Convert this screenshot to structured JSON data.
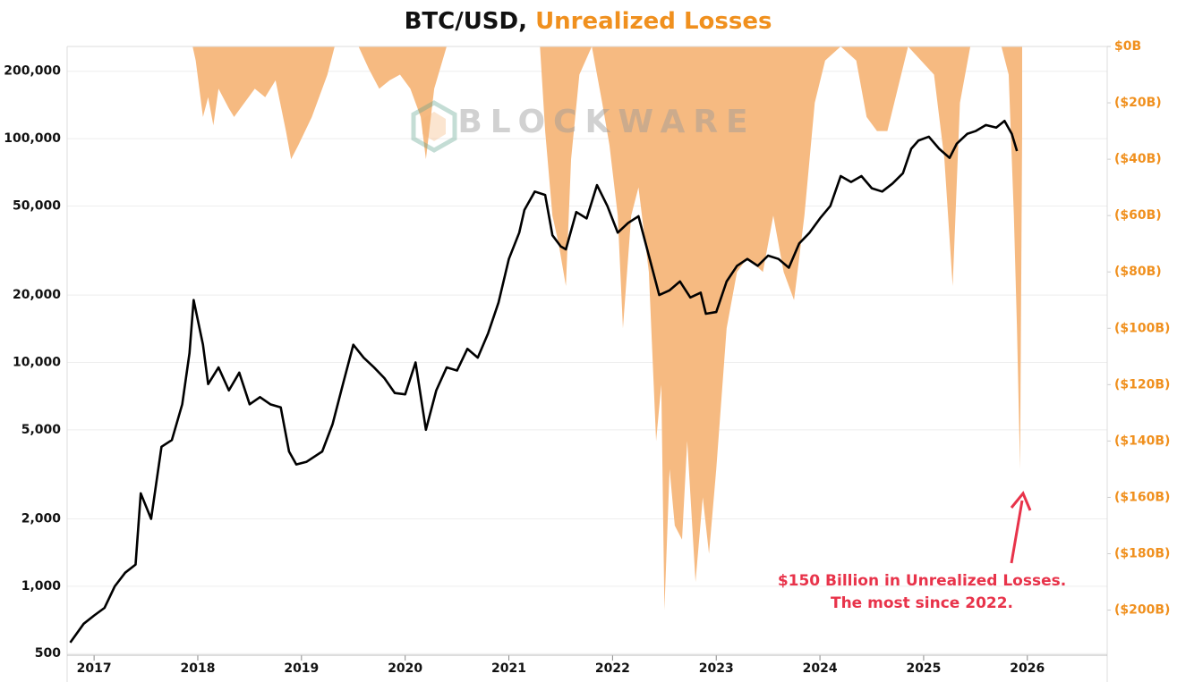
{
  "chart_data": {
    "type": "line-area",
    "title_parts": [
      "BTC/USD,",
      "Unrealized Losses"
    ],
    "title_colors": [
      "#111111",
      "#f0901e"
    ],
    "watermark": "BLOCKWARE",
    "annotation": [
      "$150 Billion in Unrealized Losses.",
      "The most since 2022."
    ],
    "annotation_color": "#e8334a",
    "xlim": [
      2016.74,
      2026.77
    ],
    "xticks": [
      2017,
      2018,
      2019,
      2020,
      2021,
      2022,
      2023,
      2024,
      2025,
      2026
    ],
    "ylim": [
      492,
      258000
    ],
    "log_y": true,
    "yticks": [
      500,
      {
        "value": 1000,
        "label": "1,000"
      },
      {
        "value": 2000,
        "label": "2,000"
      },
      {
        "value": 5000,
        "label": "5,000"
      },
      {
        "value": 10000,
        "label": "10,000"
      },
      {
        "value": 20000,
        "label": "20,000"
      },
      {
        "value": 50000,
        "label": "50,000"
      },
      {
        "value": 100000,
        "label": "100,000"
      },
      {
        "value": 200000,
        "label": "200,000"
      }
    ],
    "y2lim": [
      -216,
      0
    ],
    "y2ticks": [
      {
        "value": 0,
        "label": "$0B"
      },
      {
        "value": -20,
        "label": "($20B)"
      },
      {
        "value": -40,
        "label": "($40B)"
      },
      {
        "value": -60,
        "label": "($60B)"
      },
      {
        "value": -80,
        "label": "($80B)"
      },
      {
        "value": -100,
        "label": "($100B)"
      },
      {
        "value": -120,
        "label": "($120B)"
      },
      {
        "value": -140,
        "label": "($140B)"
      },
      {
        "value": -160,
        "label": "($160B)"
      },
      {
        "value": -180,
        "label": "($180B)"
      },
      {
        "value": -200,
        "label": "($200B)"
      }
    ],
    "grid": true,
    "series": [
      {
        "kind": "area",
        "axis": "y2",
        "color": "#f5b67a",
        "x": [
          2016.74,
          2017.95,
          2017.98,
          2018.05,
          2018.1,
          2018.15,
          2018.2,
          2018.3,
          2018.35,
          2018.45,
          2018.55,
          2018.65,
          2018.75,
          2018.85,
          2018.9,
          2018.97,
          2019.1,
          2019.25,
          2019.32,
          2019.55,
          2019.65,
          2019.75,
          2019.85,
          2019.95,
          2020.05,
          2020.15,
          2020.2,
          2020.28,
          2020.4,
          2021.3,
          2021.35,
          2021.42,
          2021.48,
          2021.55,
          2021.6,
          2021.68,
          2021.8,
          2021.9,
          2021.97,
          2022.05,
          2022.1,
          2022.18,
          2022.25,
          2022.35,
          2022.42,
          2022.47,
          2022.5,
          2022.55,
          2022.6,
          2022.67,
          2022.72,
          2022.8,
          2022.87,
          2022.93,
          2023.0,
          2023.1,
          2023.2,
          2023.3,
          2023.45,
          2023.55,
          2023.65,
          2023.75,
          2023.85,
          2023.95,
          2024.05,
          2024.2,
          2024.35,
          2024.45,
          2024.55,
          2024.65,
          2024.75,
          2024.85,
          2025.1,
          2025.2,
          2025.28,
          2025.35,
          2025.45,
          2025.75,
          2025.82,
          2025.87,
          2025.9,
          2025.93,
          2025.95
        ],
        "values": [
          0,
          0,
          -5,
          -25,
          -18,
          -28,
          -15,
          -22,
          -25,
          -20,
          -15,
          -18,
          -12,
          -30,
          -40,
          -35,
          -25,
          -10,
          0,
          0,
          -8,
          -15,
          -12,
          -10,
          -15,
          -25,
          -40,
          -15,
          0,
          0,
          -30,
          -60,
          -70,
          -85,
          -40,
          -10,
          0,
          -20,
          -35,
          -60,
          -100,
          -60,
          -50,
          -80,
          -140,
          -120,
          -200,
          -150,
          -170,
          -175,
          -140,
          -190,
          -160,
          -180,
          -150,
          -100,
          -80,
          -75,
          -80,
          -60,
          -80,
          -90,
          -60,
          -20,
          -5,
          0,
          -5,
          -25,
          -30,
          -30,
          -15,
          0,
          -10,
          -40,
          -85,
          -20,
          0,
          0,
          -10,
          -60,
          -100,
          -150,
          -30
        ]
      },
      {
        "kind": "line",
        "axis": "y",
        "color": "#000000",
        "x": [
          2016.77,
          2016.9,
          2017.0,
          2017.1,
          2017.2,
          2017.3,
          2017.4,
          2017.45,
          2017.55,
          2017.65,
          2017.75,
          2017.85,
          2017.92,
          2017.96,
          2018.05,
          2018.1,
          2018.2,
          2018.3,
          2018.4,
          2018.5,
          2018.6,
          2018.7,
          2018.8,
          2018.88,
          2018.95,
          2019.05,
          2019.2,
          2019.3,
          2019.4,
          2019.5,
          2019.6,
          2019.7,
          2019.8,
          2019.9,
          2020.0,
          2020.1,
          2020.2,
          2020.3,
          2020.4,
          2020.5,
          2020.6,
          2020.7,
          2020.8,
          2020.9,
          2021.0,
          2021.1,
          2021.15,
          2021.25,
          2021.35,
          2021.42,
          2021.5,
          2021.55,
          2021.65,
          2021.75,
          2021.85,
          2021.95,
          2022.05,
          2022.15,
          2022.25,
          2022.35,
          2022.45,
          2022.55,
          2022.65,
          2022.75,
          2022.85,
          2022.9,
          2023.0,
          2023.1,
          2023.2,
          2023.3,
          2023.4,
          2023.5,
          2023.6,
          2023.7,
          2023.8,
          2023.9,
          2024.0,
          2024.1,
          2024.2,
          2024.3,
          2024.4,
          2024.5,
          2024.6,
          2024.7,
          2024.8,
          2024.88,
          2024.95,
          2025.05,
          2025.15,
          2025.25,
          2025.32,
          2025.42,
          2025.5,
          2025.6,
          2025.7,
          2025.78,
          2025.85,
          2025.9
        ],
        "values": [
          560,
          680,
          740,
          800,
          1000,
          1150,
          1250,
          2600,
          2000,
          4200,
          4500,
          6500,
          11000,
          19000,
          12000,
          8000,
          9500,
          7500,
          9000,
          6500,
          7000,
          6500,
          6300,
          4000,
          3500,
          3600,
          4000,
          5300,
          8000,
          12000,
          10500,
          9500,
          8500,
          7300,
          7200,
          10000,
          5000,
          7500,
          9500,
          9200,
          11500,
          10500,
          13500,
          18500,
          29000,
          38000,
          48000,
          58000,
          56000,
          37000,
          33000,
          32000,
          47000,
          44000,
          62000,
          50000,
          38000,
          42000,
          45000,
          30000,
          20000,
          21000,
          23000,
          19500,
          20500,
          16500,
          16800,
          23000,
          27000,
          29000,
          27000,
          30000,
          29000,
          26500,
          34000,
          38000,
          44000,
          50000,
          68000,
          64000,
          68000,
          60000,
          58000,
          63000,
          70000,
          90000,
          98000,
          102000,
          90000,
          82000,
          95000,
          105000,
          108000,
          115000,
          112000,
          120000,
          105000,
          88000
        ]
      }
    ]
  }
}
